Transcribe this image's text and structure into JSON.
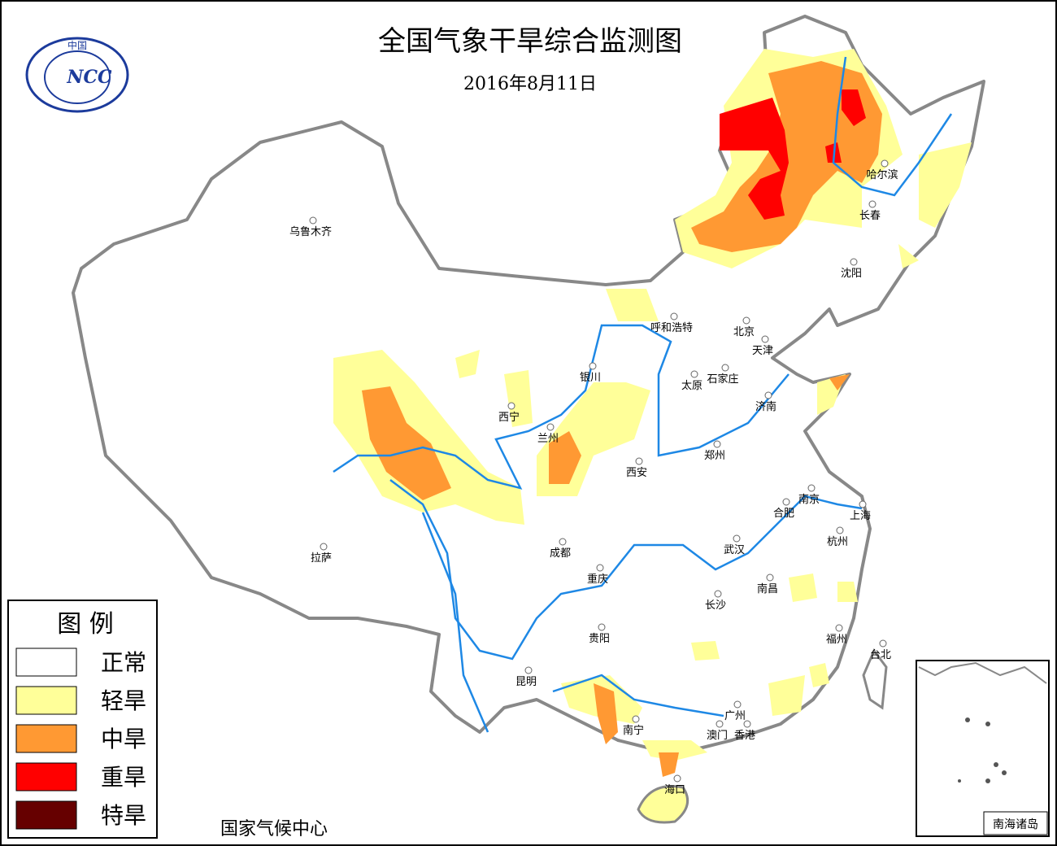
{
  "title": "全国气象干旱综合监测图",
  "date": "2016年8月11日",
  "logo": {
    "top": "中国",
    "mark": "NCC"
  },
  "legend": {
    "title": "图 例",
    "items": [
      {
        "label": "正常",
        "color": "#ffffff"
      },
      {
        "label": "轻旱",
        "color": "#ffff99"
      },
      {
        "label": "中旱",
        "color": "#ff9933"
      },
      {
        "label": "重旱",
        "color": "#ff0000"
      },
      {
        "label": "特旱",
        "color": "#660000"
      }
    ]
  },
  "cities": [
    "乌鲁木齐",
    "哈尔滨",
    "长春",
    "沈阳",
    "呼和浩特",
    "北京",
    "天津",
    "银川",
    "石家庄",
    "太原",
    "济南",
    "西宁",
    "兰州",
    "郑州",
    "西安",
    "南京",
    "合肥",
    "上海",
    "拉萨",
    "成都",
    "武汉",
    "杭州",
    "重庆",
    "南昌",
    "长沙",
    "贵阳",
    "福州",
    "台北",
    "昆明",
    "广州",
    "南宁",
    "澳门",
    "香港",
    "海口"
  ],
  "source": "国家气候中心",
  "inset_label": "南海诸岛"
}
